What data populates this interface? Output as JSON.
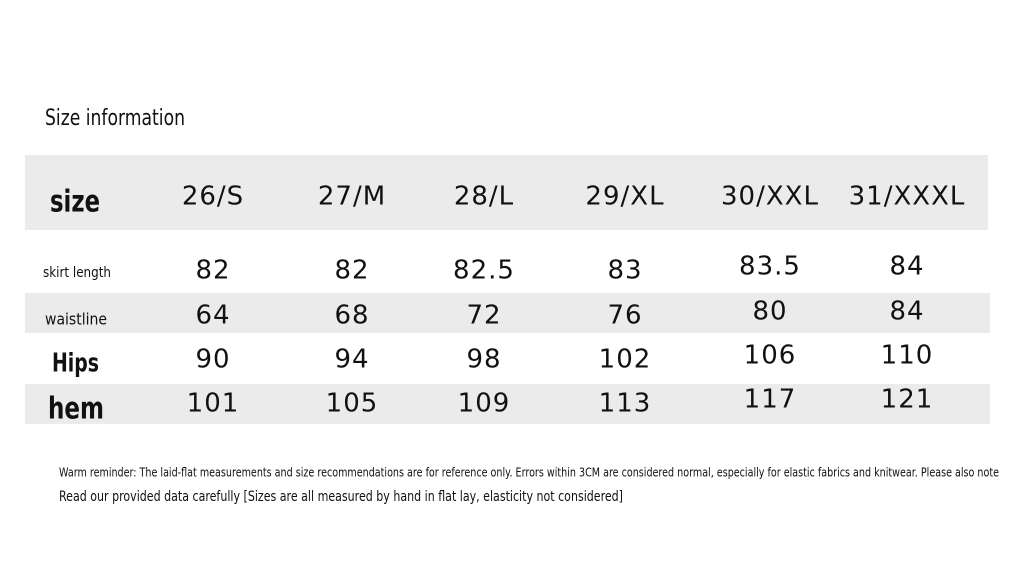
{
  "header": {
    "title": "Size information"
  },
  "table": {
    "columns": [
      "size",
      "26/S",
      "27/M",
      "28/L",
      "29/XL",
      "30/XXL",
      "31/XXXL"
    ],
    "rows": [
      [
        "skirt length",
        "82",
        "82",
        "82.5",
        "83",
        "83.5",
        "84"
      ],
      [
        "waistline",
        "64",
        "68",
        "72",
        "76",
        "80",
        "84"
      ],
      [
        "Hips",
        "90",
        "94",
        "98",
        "102",
        "106",
        "110"
      ],
      [
        "hem",
        "101",
        "105",
        "109",
        "113",
        "117",
        "121"
      ]
    ]
  },
  "notes": [
    "Warm reminder: The laid-flat measurements and size recommendations are for reference only. Errors within 3CM are considered normal, especially for elastic fabrics and knitwear. Please also note",
    "Read our provided data carefully [Sizes are all measured by hand in flat lay, elasticity not considered]"
  ]
}
